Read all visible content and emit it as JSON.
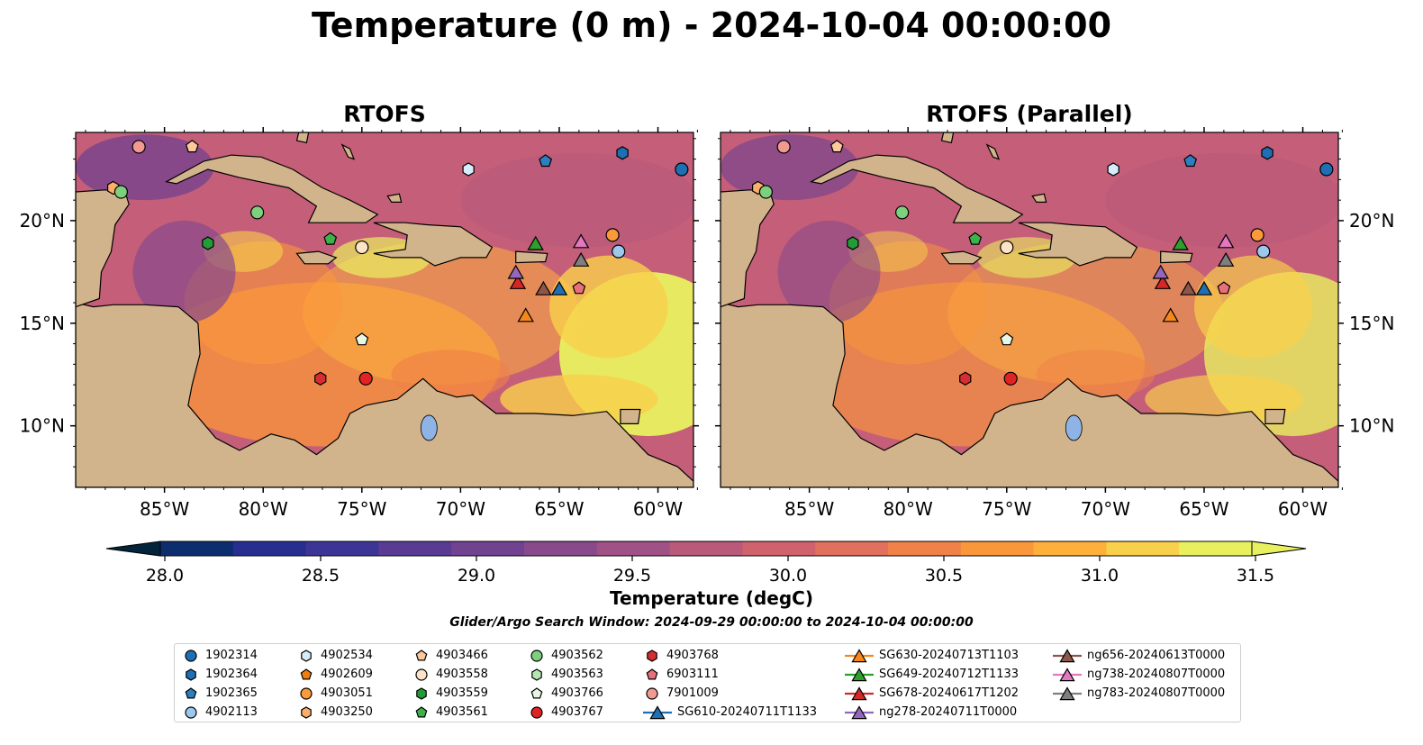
{
  "title": "Temperature (0 m) - 2024-10-04 00:00:00",
  "panels": [
    {
      "title": "RTOFS"
    },
    {
      "title": "RTOFS (Parallel)"
    }
  ],
  "axes": {
    "lon_ticks": [
      "85°W",
      "80°W",
      "75°W",
      "70°W",
      "65°W",
      "60°W"
    ],
    "lat_ticks": [
      "20°N",
      "15°N",
      "10°N"
    ],
    "lon_range": [
      -89.5,
      -58.2
    ],
    "lat_range": [
      7.0,
      24.3
    ]
  },
  "colorbar": {
    "label": "Temperature (degC)",
    "ticks": [
      "28.0",
      "28.5",
      "29.0",
      "29.5",
      "30.0",
      "30.5",
      "31.0",
      "31.5"
    ],
    "min": 27.75,
    "max": 31.5,
    "colors": [
      "#03243a",
      "#0d2e6e",
      "#262f90",
      "#3d3596",
      "#5a3b94",
      "#714290",
      "#884a8b",
      "#a05185",
      "#b95a7b",
      "#d0626d",
      "#e2705e",
      "#f08148",
      "#fa973a",
      "#fdb13c",
      "#f9d04b",
      "#e9f05f"
    ]
  },
  "search_window": "Glider/Argo Search Window: 2024-09-29 00:00:00 to 2024-10-04 00:00:00",
  "chart_data": {
    "type": "scatter",
    "series": [
      {
        "name": "1902314",
        "marker": "circle",
        "color": "#1f6fb4",
        "points": [
          [
            -58.8,
            22.5
          ]
        ]
      },
      {
        "name": "1902364",
        "marker": "hexagon",
        "color": "#1f6fb4",
        "points": [
          [
            -61.8,
            23.3
          ]
        ]
      },
      {
        "name": "1902365",
        "marker": "pentagon",
        "color": "#2c7fc0",
        "points": [
          [
            -65.7,
            22.9
          ]
        ]
      },
      {
        "name": "4902113",
        "marker": "circle",
        "color": "#9cc8ec",
        "points": [
          [
            -62.0,
            18.5
          ]
        ]
      },
      {
        "name": "4902534",
        "marker": "hexagon",
        "color": "#d6ecfb",
        "points": [
          [
            -69.6,
            22.5
          ]
        ]
      },
      {
        "name": "4902609",
        "marker": "pentagon",
        "color": "#f07d0e",
        "points": []
      },
      {
        "name": "4903051",
        "marker": "circle",
        "color": "#fb9a3a",
        "points": [
          [
            -62.3,
            19.3
          ]
        ]
      },
      {
        "name": "4903250",
        "marker": "hexagon",
        "color": "#fcae6b",
        "points": [
          [
            -87.6,
            21.6
          ]
        ]
      },
      {
        "name": "4903466",
        "marker": "pentagon",
        "color": "#fcc89c",
        "points": [
          [
            -83.6,
            23.6
          ]
        ]
      },
      {
        "name": "4903558",
        "marker": "circle",
        "color": "#fde3c8",
        "points": [
          [
            -75.0,
            18.7
          ]
        ]
      },
      {
        "name": "4903559",
        "marker": "hexagon",
        "color": "#239b37",
        "points": [
          [
            -82.8,
            18.9
          ]
        ]
      },
      {
        "name": "4903561",
        "marker": "pentagon",
        "color": "#3db24a",
        "points": [
          [
            -76.6,
            19.1
          ]
        ]
      },
      {
        "name": "4903562",
        "marker": "circle",
        "color": "#7dd07d",
        "points": [
          [
            -87.2,
            21.4
          ],
          [
            -80.3,
            20.4
          ]
        ]
      },
      {
        "name": "4903563",
        "marker": "hexagon",
        "color": "#b7e6b3",
        "points": []
      },
      {
        "name": "4903766",
        "marker": "pentagon",
        "color": "#e7f7e3",
        "points": [
          [
            -75.0,
            14.2
          ]
        ]
      },
      {
        "name": "4903767",
        "marker": "circle",
        "color": "#e02424",
        "points": [
          [
            -74.8,
            12.3
          ]
        ]
      },
      {
        "name": "4903768",
        "marker": "hexagon",
        "color": "#d62e30",
        "points": [
          [
            -77.1,
            12.3
          ]
        ]
      },
      {
        "name": "6903111",
        "marker": "pentagon",
        "color": "#e9707b",
        "points": [
          [
            -64.0,
            16.7
          ]
        ]
      },
      {
        "name": "7901009",
        "marker": "circle",
        "color": "#f29a92",
        "points": [
          [
            -86.3,
            23.6
          ]
        ]
      },
      {
        "name": "SG610-20240711T1133",
        "marker": "triangle",
        "color": "#1f6fb4",
        "points": [
          [
            -65.0,
            16.7
          ]
        ]
      },
      {
        "name": "SG630-20240713T1103",
        "marker": "triangle",
        "color": "#f7861b",
        "points": [
          [
            -66.7,
            15.4
          ]
        ]
      },
      {
        "name": "SG649-20240712T1133",
        "marker": "triangle",
        "color": "#2ca02c",
        "points": [
          [
            -66.2,
            18.9
          ]
        ]
      },
      {
        "name": "SG678-20240617T1202",
        "marker": "triangle",
        "color": "#d62728",
        "points": [
          [
            -67.1,
            17.0
          ]
        ]
      },
      {
        "name": "ng278-20240711T0000",
        "marker": "triangle",
        "color": "#9467bd",
        "points": [
          [
            -67.2,
            17.5
          ]
        ]
      },
      {
        "name": "ng656-20240613T0000",
        "marker": "triangle",
        "color": "#8c564b",
        "points": [
          [
            -65.8,
            16.7
          ]
        ]
      },
      {
        "name": "ng738-20240807T0000",
        "marker": "triangle",
        "color": "#e377c2",
        "points": [
          [
            -63.9,
            19.0
          ]
        ]
      },
      {
        "name": "ng783-20240807T0000",
        "marker": "triangle",
        "color": "#7f7f7f",
        "points": [
          [
            -63.9,
            18.1
          ]
        ]
      }
    ]
  },
  "legend_columns": [
    [
      "1902314",
      "1902364",
      "1902365",
      "4902113"
    ],
    [
      "4902534",
      "4902609",
      "4903051",
      "4903250"
    ],
    [
      "4903466",
      "4903558",
      "4903559",
      "4903561"
    ],
    [
      "4903562",
      "4903563",
      "4903766",
      "4903767"
    ],
    [
      "4903768",
      "6903111",
      "7901009",
      "SG610-20240711T1133"
    ],
    [
      "SG630-20240713T1103",
      "SG649-20240712T1133",
      "SG678-20240617T1202",
      "ng278-20240711T0000"
    ],
    [
      "ng656-20240613T0000",
      "ng738-20240807T0000",
      "ng783-20240807T0000"
    ]
  ]
}
